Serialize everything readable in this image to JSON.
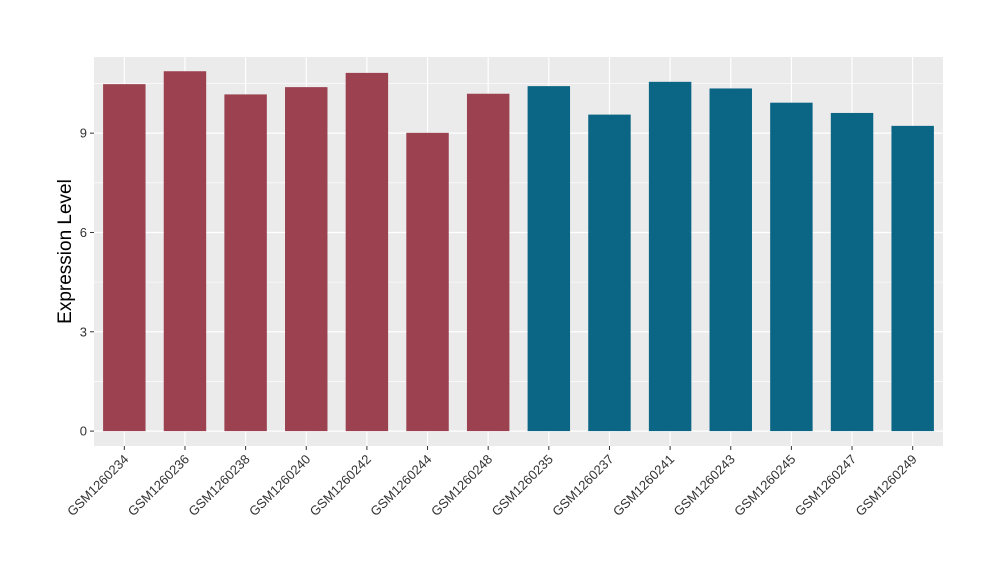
{
  "chart_data": {
    "type": "bar",
    "title": "",
    "xlabel": "",
    "ylabel": "Expression Level",
    "ylim": [
      -0.45,
      11.3
    ],
    "yticks": [
      0,
      3,
      6,
      9
    ],
    "grid": true,
    "legend": "none",
    "categories": [
      "GSM1260234",
      "GSM1260236",
      "GSM1260238",
      "GSM1260240",
      "GSM1260242",
      "GSM1260244",
      "GSM1260248",
      "GSM1260235",
      "GSM1260237",
      "GSM1260241",
      "GSM1260243",
      "GSM1260245",
      "GSM1260247",
      "GSM1260249"
    ],
    "values": [
      10.48,
      10.87,
      10.17,
      10.39,
      10.82,
      9.01,
      10.19,
      10.42,
      9.56,
      10.55,
      10.35,
      9.92,
      9.61,
      9.22
    ],
    "bar_colors": [
      "#9b4150",
      "#9b4150",
      "#9b4150",
      "#9b4150",
      "#9b4150",
      "#9b4150",
      "#9b4150",
      "#0b6585",
      "#0b6585",
      "#0b6585",
      "#0b6585",
      "#0b6585",
      "#0b6585",
      "#0b6585"
    ]
  },
  "colors": {
    "panel_background": "#ebebeb",
    "gridline": "#ffffff",
    "tick_label": "#333333",
    "tick_mark": "#333333"
  }
}
